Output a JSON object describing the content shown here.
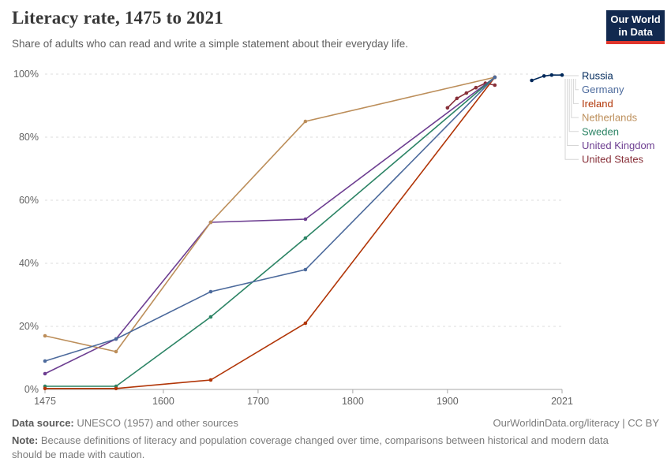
{
  "header": {
    "title": "Literacy rate, 1475 to 2021",
    "subtitle": "Share of adults who can read and write a simple statement about their everyday life.",
    "logo": {
      "line1": "Our World",
      "line2": "in Data",
      "bg_color": "#12294F",
      "accent_color": "#E0362C"
    }
  },
  "chart_data": {
    "type": "line",
    "title": "Literacy rate, 1475 to 2021",
    "xlabel": "",
    "ylabel": "",
    "xlim": [
      1475,
      2021
    ],
    "ylim": [
      0,
      100
    ],
    "x_ticks": [
      1475,
      1600,
      1700,
      1800,
      1900,
      2021
    ],
    "y_ticks": [
      0,
      20,
      40,
      60,
      80,
      100
    ],
    "y_tick_suffix": "%",
    "grid": "horizontal-dashed",
    "legend_position": "right",
    "series": [
      {
        "name": "Russia",
        "color": "#00295B",
        "points": [
          [
            1989,
            98
          ],
          [
            2002,
            99.4
          ],
          [
            2010,
            99.7
          ],
          [
            2021,
            99.7
          ]
        ]
      },
      {
        "name": "Germany",
        "color": "#4C6A9C",
        "points": [
          [
            1475,
            9
          ],
          [
            1550,
            16
          ],
          [
            1650,
            31
          ],
          [
            1750,
            38
          ],
          [
            1950,
            99
          ]
        ]
      },
      {
        "name": "Ireland",
        "color": "#B13507",
        "points": [
          [
            1475,
            0.3
          ],
          [
            1550,
            0.3
          ],
          [
            1650,
            3
          ],
          [
            1750,
            21
          ],
          [
            1950,
            99
          ]
        ]
      },
      {
        "name": "Netherlands",
        "color": "#BC8E5A",
        "points": [
          [
            1475,
            17
          ],
          [
            1550,
            12
          ],
          [
            1650,
            53
          ],
          [
            1750,
            85
          ],
          [
            1950,
            99
          ]
        ]
      },
      {
        "name": "Sweden",
        "color": "#2C8465",
        "points": [
          [
            1475,
            1
          ],
          [
            1550,
            1
          ],
          [
            1650,
            23
          ],
          [
            1750,
            48
          ],
          [
            1950,
            99
          ]
        ]
      },
      {
        "name": "United Kingdom",
        "color": "#6D3E91",
        "points": [
          [
            1475,
            5
          ],
          [
            1550,
            16
          ],
          [
            1650,
            53
          ],
          [
            1750,
            54
          ],
          [
            1950,
            99
          ]
        ]
      },
      {
        "name": "United States",
        "color": "#883039",
        "points": [
          [
            1900,
            89.3
          ],
          [
            1910,
            92.3
          ],
          [
            1920,
            94
          ],
          [
            1930,
            95.7
          ],
          [
            1940,
            97.1
          ],
          [
            1950,
            96.5
          ]
        ]
      }
    ]
  },
  "footer": {
    "source_label": "Data source:",
    "source_text": " UNESCO (1957) and other sources",
    "link": "OurWorldinData.org/literacy | CC BY",
    "note_label": "Note:",
    "note_text": " Because definitions of literacy and population coverage changed over time, comparisons between historical and modern data should be made with caution."
  }
}
